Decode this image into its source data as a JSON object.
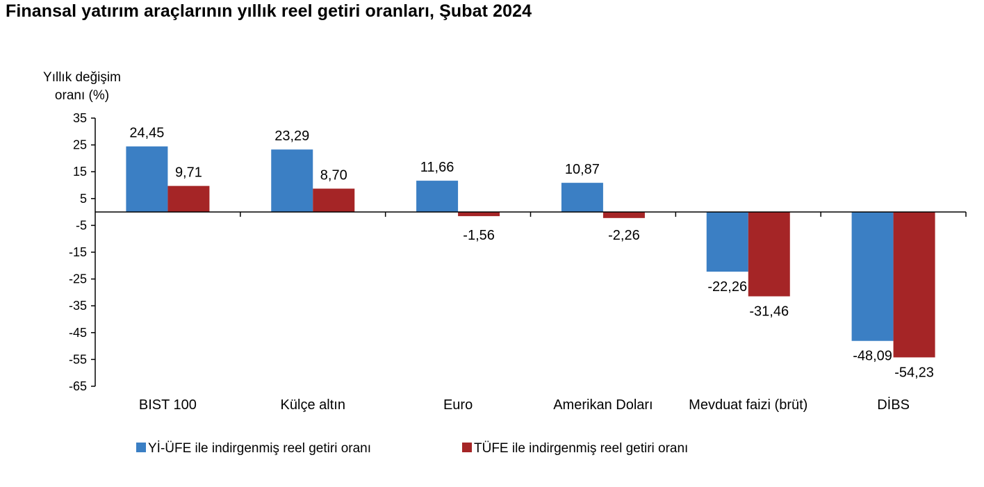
{
  "chart_data": {
    "type": "bar",
    "title": "Finansal yatırım araçlarının yıllık reel getiri oranları, Şubat 2024",
    "ylabel_lines": [
      "Yıllık değişim",
      "oranı (%)"
    ],
    "categories": [
      "BIST 100",
      "Külçe altın",
      "Euro",
      "Amerikan Doları",
      "Mevduat faizi (brüt)",
      "DİBS"
    ],
    "series": [
      {
        "name": "Yİ-ÜFE ile indirgenmiş reel getiri oranı",
        "color": "#3b7fc4",
        "values": [
          24.45,
          23.29,
          11.66,
          10.87,
          -22.26,
          -48.09
        ],
        "labels": [
          "24,45",
          "23,29",
          "11,66",
          "10,87",
          "-22,26",
          "-48,09"
        ]
      },
      {
        "name": "TÜFE ile indirgenmiş reel getiri oranı",
        "color": "#a52526",
        "values": [
          9.71,
          8.7,
          -1.56,
          -2.26,
          -31.46,
          -54.23
        ],
        "labels": [
          "9,71",
          "8,70",
          "-1,56",
          "-2,26",
          "-31,46",
          "-54,23"
        ]
      }
    ],
    "yticks": [
      35,
      25,
      15,
      5,
      -5,
      -15,
      -25,
      -35,
      -45,
      -55,
      -65
    ],
    "ylim": [
      -65,
      35
    ],
    "grid": false,
    "legend_position": "bottom"
  }
}
